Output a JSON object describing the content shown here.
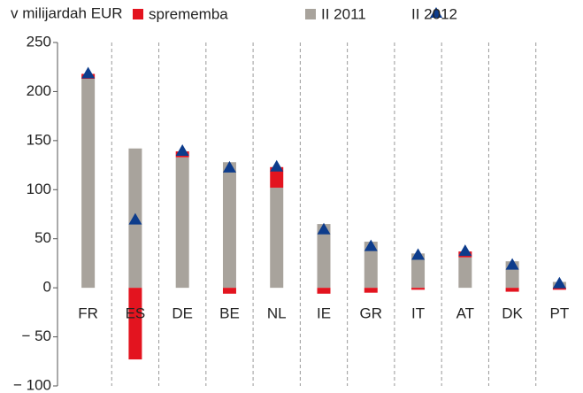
{
  "chart_data": {
    "type": "bar",
    "ylabel": "v milijardah EUR",
    "categories": [
      "FR",
      "ES",
      "DE",
      "BE",
      "NL",
      "IE",
      "GR",
      "IT",
      "AT",
      "DK",
      "PT"
    ],
    "series": [
      {
        "name": "sprememba",
        "color": "#e3141f",
        "values": [
          5,
          -73,
          6,
          -6,
          21,
          -6,
          -5,
          -2,
          6,
          -4,
          -2
        ]
      },
      {
        "name": "II 2011",
        "color": "#a8a39c",
        "values": [
          213,
          142,
          133,
          128,
          102,
          65,
          47,
          35,
          31,
          27,
          6
        ]
      },
      {
        "name": "II 2012",
        "color": "#0d3c8c",
        "values": [
          218,
          69,
          139,
          122,
          123,
          59,
          42,
          33,
          37,
          23,
          4
        ]
      }
    ],
    "ylim": [
      -100,
      250
    ],
    "yticks": [
      250,
      200,
      150,
      100,
      50,
      0,
      {
        "value": -50,
        "label": "− 50"
      },
      {
        "value": -100,
        "label": "− 100"
      }
    ]
  }
}
